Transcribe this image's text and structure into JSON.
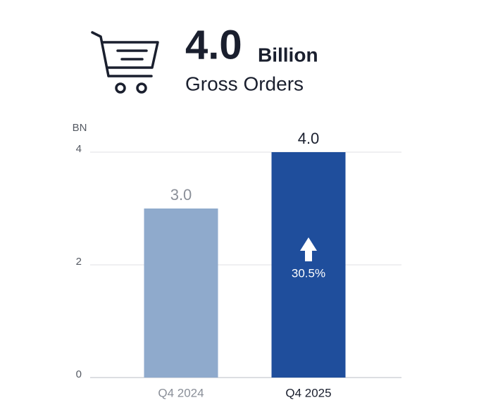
{
  "header": {
    "value": "4.0",
    "unit": "Billion",
    "label": "Gross Orders"
  },
  "chart_data": {
    "type": "bar",
    "y_unit": "BN",
    "categories": [
      "Q4 2024",
      "Q4 2025"
    ],
    "values": [
      3,
      4
    ],
    "value_labels": [
      "3.0",
      "4.0"
    ],
    "colors": [
      "#8faacc",
      "#1f4e9c"
    ],
    "ylim": [
      0,
      4
    ],
    "yticks": [
      0,
      2,
      4
    ],
    "grid": true,
    "annotation": "30.5%"
  }
}
